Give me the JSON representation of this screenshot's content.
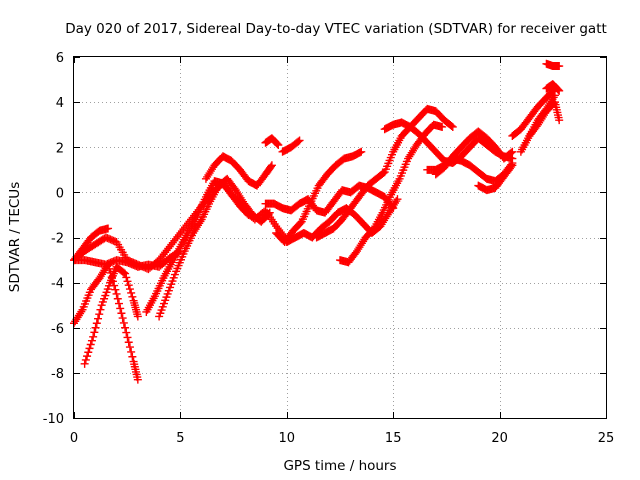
{
  "chart_data": {
    "type": "scatter",
    "title": "Day 020 of 2017, Sidereal Day-to-day VTEC variation (SDTVAR) for receiver gatt",
    "xlabel": "GPS time / hours",
    "ylabel": "SDTVAR / TECUs",
    "xlim": [
      0,
      25
    ],
    "ylim": [
      -10,
      6
    ],
    "xticks": [
      0,
      5,
      10,
      15,
      20,
      25
    ],
    "yticks": [
      -10,
      -8,
      -6,
      -4,
      -2,
      0,
      2,
      4,
      6
    ],
    "grid": true,
    "marker": "plus",
    "color": "#ff0000",
    "series": [
      {
        "x": [
          0.0,
          0.5,
          1.0,
          1.5,
          2.0,
          2.5,
          3.0,
          3.5,
          4.0,
          4.5,
          5.0,
          5.5,
          6.0,
          6.5,
          7.0,
          7.5,
          8.0,
          8.5,
          9.0,
          9.5,
          10.0
        ],
        "y": [
          -3.0,
          -2.6,
          -2.3,
          -2.0,
          -2.2,
          -3.0,
          -3.2,
          -3.4,
          -3.0,
          -2.4,
          -1.8,
          -1.2,
          -0.6,
          0.0,
          0.4,
          -0.2,
          -0.8,
          -1.2,
          -0.8,
          -1.5,
          -2.1
        ]
      },
      {
        "x": [
          0.0,
          0.4,
          0.8,
          1.2,
          1.6,
          2.0,
          2.4,
          2.8,
          3.0
        ],
        "y": [
          -5.8,
          -5.2,
          -4.3,
          -3.8,
          -3.2,
          -4.5,
          -6.0,
          -7.5,
          -8.3
        ]
      },
      {
        "x": [
          0.5,
          0.9,
          1.3,
          1.7,
          2.0,
          2.4,
          2.8,
          3.0
        ],
        "y": [
          -7.6,
          -6.4,
          -5.0,
          -4.0,
          -3.3,
          -3.6,
          -4.8,
          -5.5
        ]
      },
      {
        "x": [
          0.0,
          0.4,
          0.8,
          1.2,
          1.6
        ],
        "y": [
          -3.0,
          -2.5,
          -2.0,
          -1.7,
          -1.6
        ]
      },
      {
        "x": [
          0.0,
          0.5,
          1.0,
          1.5,
          2.0,
          2.5,
          3.0,
          3.5,
          4.0,
          4.5,
          5.0
        ],
        "y": [
          -3.0,
          -3.0,
          -3.1,
          -3.2,
          -3.0,
          -3.1,
          -3.3,
          -3.2,
          -3.3,
          -2.9,
          -2.6
        ]
      },
      {
        "x": [
          3.4,
          3.8,
          4.2,
          4.6,
          5.0,
          5.4,
          5.8,
          6.2,
          6.6,
          7.0,
          7.4,
          7.8,
          8.2
        ],
        "y": [
          -5.3,
          -4.6,
          -3.8,
          -3.1,
          -2.4,
          -1.7,
          -1.0,
          -0.2,
          0.5,
          0.4,
          -0.1,
          -0.6,
          -1.0
        ]
      },
      {
        "x": [
          4.0,
          4.4,
          4.8,
          5.2,
          5.6,
          6.0,
          6.4,
          6.8,
          7.2,
          7.6,
          8.0,
          8.4,
          8.8,
          9.2
        ],
        "y": [
          -5.5,
          -4.5,
          -3.5,
          -2.6,
          -1.8,
          -1.2,
          -0.4,
          0.3,
          0.6,
          0.1,
          -0.5,
          -1.0,
          -1.3,
          -0.9
        ]
      },
      {
        "x": [
          6.2,
          6.6,
          7.0,
          7.4,
          7.8,
          8.2,
          8.6,
          9.0,
          9.3
        ],
        "y": [
          0.6,
          1.2,
          1.6,
          1.4,
          1.0,
          0.5,
          0.3,
          0.8,
          1.2
        ]
      },
      {
        "x": [
          9.0,
          9.3,
          9.6
        ],
        "y": [
          2.2,
          2.4,
          2.1
        ]
      },
      {
        "x": [
          9.8,
          10.2,
          10.6
        ],
        "y": [
          1.8,
          2.0,
          2.3
        ]
      },
      {
        "x": [
          9.0,
          9.4,
          9.8,
          10.2,
          10.6,
          11.0,
          11.4,
          11.8,
          12.2,
          12.6,
          13.0,
          13.4,
          13.8,
          14.2,
          14.6,
          15.0
        ],
        "y": [
          -0.5,
          -0.5,
          -0.7,
          -0.8,
          -0.5,
          -0.3,
          -0.8,
          -0.9,
          -0.4,
          0.1,
          0.0,
          0.3,
          0.2,
          0.0,
          -0.2,
          -0.7
        ]
      },
      {
        "x": [
          9.5,
          9.9,
          10.3,
          10.7,
          11.1,
          11.5,
          11.9,
          12.3,
          12.7,
          13.1,
          13.5
        ],
        "y": [
          -1.8,
          -2.2,
          -1.7,
          -1.3,
          -0.5,
          0.3,
          0.8,
          1.2,
          1.5,
          1.6,
          1.8
        ]
      },
      {
        "x": [
          10.0,
          10.4,
          10.8,
          11.2,
          11.6,
          12.0,
          12.4,
          12.8,
          13.2,
          13.6,
          14.0,
          14.4,
          14.8,
          15.2
        ],
        "y": [
          -2.2,
          -2.0,
          -1.8,
          -2.0,
          -1.6,
          -1.3,
          -0.9,
          -0.7,
          -1.0,
          -1.4,
          -1.8,
          -1.5,
          -0.9,
          -0.3
        ]
      },
      {
        "x": [
          11.4,
          11.8,
          12.2,
          12.6,
          13.0,
          13.4,
          13.8,
          14.2,
          14.6,
          15.0,
          15.4,
          15.8,
          16.2,
          16.6,
          17.0,
          17.4,
          17.8
        ],
        "y": [
          -2.0,
          -1.8,
          -1.6,
          -1.2,
          -0.7,
          -0.2,
          0.3,
          0.6,
          0.9,
          1.8,
          2.5,
          2.9,
          3.3,
          3.7,
          3.6,
          3.2,
          2.9
        ]
      },
      {
        "x": [
          12.5,
          12.9,
          13.3,
          13.7,
          14.1,
          14.5,
          14.9,
          15.3,
          15.7,
          16.1,
          16.5,
          16.9,
          17.3
        ],
        "y": [
          -3.0,
          -3.1,
          -2.6,
          -2.0,
          -1.6,
          -0.9,
          -0.1,
          0.6,
          1.5,
          2.1,
          2.6,
          3.0,
          2.9
        ]
      },
      {
        "x": [
          14.6,
          15.0,
          15.4,
          15.8,
          16.2,
          16.6,
          17.0,
          17.4,
          17.8,
          18.2,
          18.6,
          19.0,
          19.4,
          19.8,
          20.2,
          20.6
        ],
        "y": [
          2.8,
          3.0,
          3.1,
          2.9,
          2.6,
          2.2,
          1.8,
          1.4,
          1.3,
          1.6,
          2.0,
          2.4,
          2.1,
          1.8,
          1.6,
          1.5
        ]
      },
      {
        "x": [
          16.6,
          17.0,
          17.4,
          17.8,
          18.2,
          18.6,
          19.0,
          19.4,
          19.8,
          20.2,
          20.6
        ],
        "y": [
          1.0,
          1.0,
          1.2,
          1.5,
          1.4,
          1.2,
          0.9,
          0.6,
          0.5,
          0.8,
          1.3
        ]
      },
      {
        "x": [
          17.0,
          17.4,
          17.8,
          18.2,
          18.6,
          19.0,
          19.4,
          19.8,
          20.2,
          20.6
        ],
        "y": [
          0.8,
          1.1,
          1.6,
          2.0,
          2.4,
          2.7,
          2.4,
          2.0,
          1.5,
          1.8
        ]
      },
      {
        "x": [
          19.0,
          19.4,
          19.8,
          20.2,
          20.6
        ],
        "y": [
          0.3,
          0.1,
          0.2,
          0.7,
          1.2
        ]
      },
      {
        "x": [
          20.6,
          21.0,
          21.4,
          21.8,
          22.2,
          22.6
        ],
        "y": [
          2.5,
          2.8,
          3.3,
          3.8,
          4.2,
          4.6
        ]
      },
      {
        "x": [
          21.0,
          21.4,
          21.8,
          22.2,
          22.6
        ],
        "y": [
          1.8,
          2.5,
          3.2,
          3.7,
          4.3
        ]
      },
      {
        "x": [
          21.4,
          21.8,
          22.2,
          22.6,
          22.8
        ],
        "y": [
          2.5,
          3.0,
          3.6,
          4.0,
          3.2
        ]
      },
      {
        "x": [
          22.2,
          22.5,
          22.8
        ],
        "y": [
          5.7,
          5.6,
          5.6
        ]
      },
      {
        "x": [
          22.2,
          22.5,
          22.8
        ],
        "y": [
          4.6,
          4.8,
          4.5
        ]
      }
    ]
  }
}
